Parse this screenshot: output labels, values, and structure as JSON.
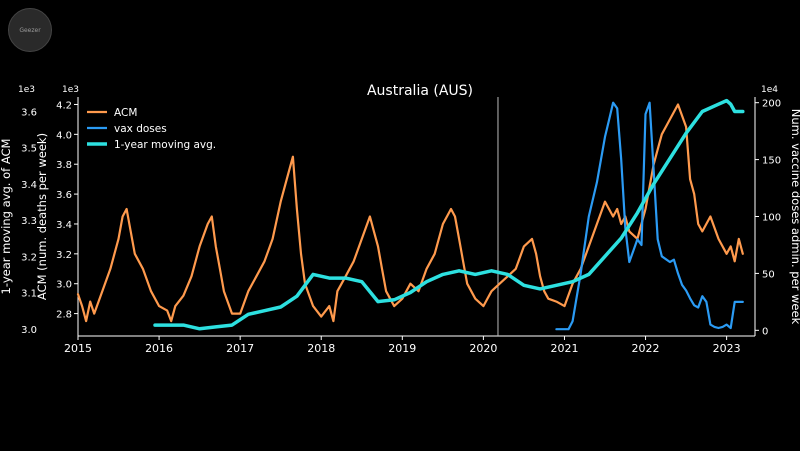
{
  "watermark": {
    "logo_text": "Geezer"
  },
  "chart_data": {
    "type": "line",
    "title": "Australia (AUS)",
    "xlabel": "",
    "left_outer_axis": {
      "label": "1-year moving avg. of ACM",
      "exponent": "1e3",
      "ticks": [
        "3.0",
        "3.1",
        "3.2",
        "3.3",
        "3.4",
        "3.5",
        "3.6"
      ],
      "ylim": [
        2.98,
        3.64
      ]
    },
    "left_inner_axis": {
      "label": "ACM (num. deaths per week)",
      "exponent": "1e3",
      "ticks": [
        "2.8",
        "3.0",
        "3.2",
        "3.4",
        "3.6",
        "3.8",
        "4.0",
        "4.2"
      ],
      "ylim": [
        2.65,
        4.25
      ]
    },
    "right_axis": {
      "label": "Num. vaccine doses admin. per week",
      "exponent": "1e4",
      "ticks": [
        "0",
        "50",
        "100",
        "150",
        "200"
      ],
      "ylim": [
        -5,
        205
      ]
    },
    "x_axis": {
      "ticks": [
        "2015",
        "2016",
        "2017",
        "2018",
        "2019",
        "2020",
        "2021",
        "2022",
        "2023"
      ],
      "xlim": [
        2015.0,
        2023.35
      ]
    },
    "vline_x": 2020.18,
    "legend": {
      "position": "top-left",
      "entries": [
        {
          "label": "ACM",
          "color": "#ff9a4d"
        },
        {
          "label": "vax doses",
          "color": "#2b9bf4"
        },
        {
          "label": "1-year moving avg.",
          "color": "#2de0e0"
        }
      ]
    },
    "series": [
      {
        "name": "ACM",
        "axis": "left_inner",
        "color": "#ff9a4d",
        "x": [
          2015.0,
          2015.05,
          2015.1,
          2015.15,
          2015.2,
          2015.3,
          2015.4,
          2015.5,
          2015.55,
          2015.6,
          2015.65,
          2015.7,
          2015.8,
          2015.9,
          2016.0,
          2016.1,
          2016.15,
          2016.2,
          2016.3,
          2016.4,
          2016.5,
          2016.6,
          2016.65,
          2016.7,
          2016.75,
          2016.8,
          2016.9,
          2017.0,
          2017.1,
          2017.2,
          2017.3,
          2017.4,
          2017.5,
          2017.6,
          2017.65,
          2017.7,
          2017.75,
          2017.8,
          2017.9,
          2018.0,
          2018.1,
          2018.15,
          2018.2,
          2018.3,
          2018.4,
          2018.5,
          2018.6,
          2018.65,
          2018.7,
          2018.75,
          2018.8,
          2018.9,
          2019.0,
          2019.1,
          2019.2,
          2019.3,
          2019.4,
          2019.5,
          2019.6,
          2019.65,
          2019.7,
          2019.75,
          2019.8,
          2019.9,
          2020.0,
          2020.1,
          2020.2,
          2020.3,
          2020.4,
          2020.5,
          2020.6,
          2020.65,
          2020.7,
          2020.75,
          2020.8,
          2020.9,
          2021.0,
          2021.1,
          2021.2,
          2021.3,
          2021.4,
          2021.5,
          2021.6,
          2021.65,
          2021.7,
          2021.75,
          2021.8,
          2021.9,
          2022.0,
          2022.1,
          2022.2,
          2022.3,
          2022.4,
          2022.5,
          2022.55,
          2022.6,
          2022.65,
          2022.7,
          2022.8,
          2022.9,
          2023.0,
          2023.05,
          2023.1,
          2023.15,
          2023.2
        ],
        "y": [
          2.93,
          2.85,
          2.75,
          2.88,
          2.8,
          2.95,
          3.1,
          3.3,
          3.45,
          3.5,
          3.35,
          3.2,
          3.1,
          2.95,
          2.85,
          2.82,
          2.75,
          2.85,
          2.92,
          3.05,
          3.25,
          3.4,
          3.45,
          3.25,
          3.1,
          2.95,
          2.8,
          2.8,
          2.95,
          3.05,
          3.15,
          3.3,
          3.55,
          3.75,
          3.85,
          3.5,
          3.2,
          3.0,
          2.85,
          2.78,
          2.85,
          2.75,
          2.95,
          3.05,
          3.15,
          3.3,
          3.45,
          3.35,
          3.25,
          3.1,
          2.95,
          2.85,
          2.9,
          3.0,
          2.95,
          3.1,
          3.2,
          3.4,
          3.5,
          3.45,
          3.3,
          3.15,
          3.0,
          2.9,
          2.85,
          2.95,
          3.0,
          3.05,
          3.1,
          3.25,
          3.3,
          3.2,
          3.05,
          2.95,
          2.9,
          2.88,
          2.85,
          3.0,
          3.1,
          3.25,
          3.4,
          3.55,
          3.45,
          3.5,
          3.4,
          3.45,
          3.35,
          3.3,
          3.5,
          3.8,
          4.0,
          4.1,
          4.2,
          4.05,
          3.7,
          3.6,
          3.4,
          3.35,
          3.45,
          3.3,
          3.2,
          3.25,
          3.15,
          3.3,
          3.2
        ]
      },
      {
        "name": "vax doses",
        "axis": "right",
        "color": "#2b9bf4",
        "x": [
          2020.9,
          2021.05,
          2021.1,
          2021.2,
          2021.3,
          2021.4,
          2021.5,
          2021.55,
          2021.6,
          2021.65,
          2021.7,
          2021.75,
          2021.8,
          2021.85,
          2021.9,
          2021.95,
          2022.0,
          2022.05,
          2022.1,
          2022.15,
          2022.2,
          2022.3,
          2022.35,
          2022.4,
          2022.45,
          2022.5,
          2022.55,
          2022.6,
          2022.65,
          2022.7,
          2022.75,
          2022.8,
          2022.85,
          2022.9,
          2022.95,
          2023.0,
          2023.05,
          2023.1,
          2023.2
        ],
        "y": [
          1,
          1,
          8,
          50,
          100,
          130,
          170,
          185,
          200,
          195,
          150,
          90,
          60,
          70,
          80,
          75,
          190,
          200,
          140,
          80,
          65,
          60,
          62,
          50,
          40,
          35,
          28,
          22,
          20,
          30,
          25,
          5,
          3,
          2,
          3,
          5,
          2,
          25,
          25
        ]
      },
      {
        "name": "1-year moving avg.",
        "axis": "left_outer",
        "color": "#2de0e0",
        "x": [
          2015.95,
          2016.1,
          2016.3,
          2016.5,
          2016.7,
          2016.9,
          2017.1,
          2017.3,
          2017.5,
          2017.7,
          2017.9,
          2018.1,
          2018.3,
          2018.5,
          2018.7,
          2018.9,
          2019.1,
          2019.3,
          2019.5,
          2019.7,
          2019.9,
          2020.1,
          2020.3,
          2020.5,
          2020.7,
          2020.9,
          2021.1,
          2021.3,
          2021.5,
          2021.7,
          2021.9,
          2022.1,
          2022.3,
          2022.5,
          2022.7,
          2022.9,
          2023.0,
          2023.05,
          2023.1,
          2023.2
        ],
        "y": [
          3.01,
          3.01,
          3.01,
          3.0,
          3.005,
          3.01,
          3.04,
          3.05,
          3.06,
          3.09,
          3.15,
          3.14,
          3.14,
          3.13,
          3.075,
          3.08,
          3.1,
          3.13,
          3.15,
          3.16,
          3.15,
          3.16,
          3.15,
          3.12,
          3.11,
          3.12,
          3.13,
          3.15,
          3.2,
          3.25,
          3.32,
          3.4,
          3.47,
          3.54,
          3.6,
          3.62,
          3.63,
          3.62,
          3.6,
          3.6
        ]
      }
    ]
  }
}
